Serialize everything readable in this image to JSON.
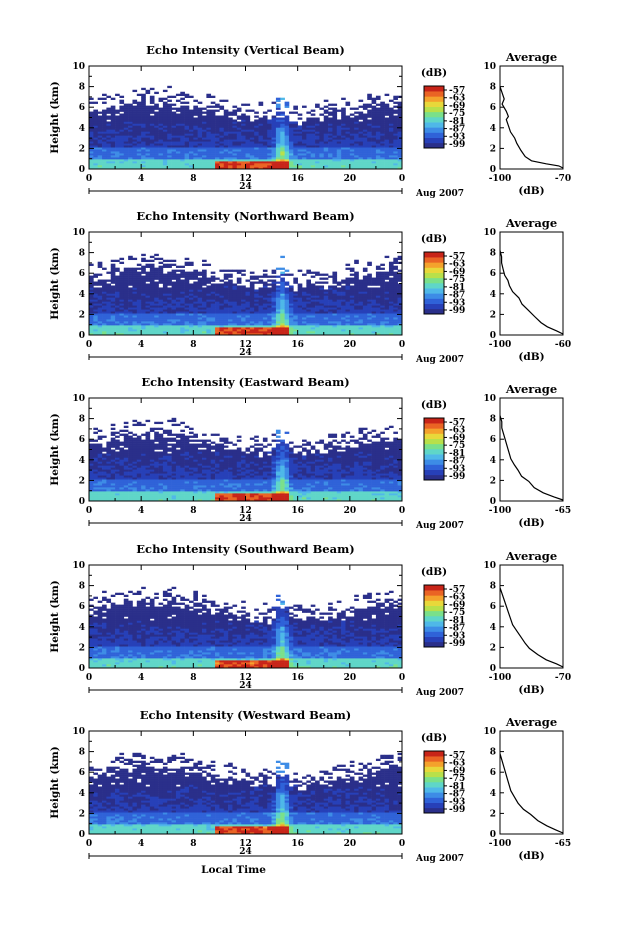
{
  "chart_data": [
    {
      "type": "heatmap",
      "title": "Echo Intensity (Vertical Beam)",
      "ylabel": "Height (km)",
      "ylim": [
        0,
        10
      ],
      "yticks": [
        "0",
        "2",
        "4",
        "6",
        "8",
        "10"
      ],
      "xlim": [
        0,
        24
      ],
      "xticks": [
        "0",
        "4",
        "8",
        "12",
        "16",
        "20",
        "0"
      ],
      "date_day": "24",
      "date_month": "Aug 2007",
      "colorbar": {
        "unit": "(dB)",
        "ticks": [
          "-57",
          "-63",
          "-69",
          "-75",
          "-81",
          "-87",
          "-93",
          "-99"
        ]
      },
      "average": {
        "title": "Average",
        "xlabel": "(dB)",
        "xticks": [
          "-100",
          "-70"
        ],
        "xlim": [
          -100,
          -70
        ],
        "profile": [
          [
            -70,
            0.1
          ],
          [
            -72,
            0.3
          ],
          [
            -78,
            0.5
          ],
          [
            -85,
            0.8
          ],
          [
            -88,
            1.2
          ],
          [
            -90,
            1.8
          ],
          [
            -92,
            2.5
          ],
          [
            -93,
            3.0
          ],
          [
            -95,
            3.6
          ],
          [
            -96,
            4.2
          ],
          [
            -97,
            4.8
          ],
          [
            -96,
            5.1
          ],
          [
            -97,
            5.6
          ],
          [
            -99,
            6.3
          ],
          [
            -98,
            6.8
          ],
          [
            -99,
            7.4
          ],
          [
            -100,
            8.0
          ]
        ]
      },
      "time_label": ""
    },
    {
      "type": "heatmap",
      "title": "Echo Intensity (Northward Beam)",
      "ylabel": "Height (km)",
      "ylim": [
        0,
        10
      ],
      "yticks": [
        "0",
        "2",
        "4",
        "6",
        "8",
        "10"
      ],
      "xlim": [
        0,
        24
      ],
      "xticks": [
        "0",
        "4",
        "8",
        "12",
        "16",
        "20",
        "0"
      ],
      "date_day": "24",
      "date_month": "Aug 2007",
      "colorbar": {
        "unit": "(dB)",
        "ticks": [
          "-57",
          "-63",
          "-69",
          "-75",
          "-81",
          "-87",
          "-93",
          "-99"
        ]
      },
      "average": {
        "title": "Average",
        "xlabel": "(dB)",
        "xticks": [
          "-100",
          "-60"
        ],
        "xlim": [
          -100,
          -60
        ],
        "profile": [
          [
            -60,
            0.1
          ],
          [
            -64,
            0.4
          ],
          [
            -70,
            0.8
          ],
          [
            -74,
            1.2
          ],
          [
            -78,
            1.8
          ],
          [
            -82,
            2.4
          ],
          [
            -86,
            3.0
          ],
          [
            -88,
            3.6
          ],
          [
            -92,
            4.2
          ],
          [
            -94,
            4.8
          ],
          [
            -95,
            5.3
          ],
          [
            -97,
            5.8
          ],
          [
            -98,
            6.4
          ],
          [
            -99,
            7.0
          ],
          [
            -99,
            7.6
          ],
          [
            -100,
            8.2
          ]
        ]
      },
      "time_label": ""
    },
    {
      "type": "heatmap",
      "title": "Echo Intensity (Eastward Beam)",
      "ylabel": "Height (km)",
      "ylim": [
        0,
        10
      ],
      "yticks": [
        "0",
        "2",
        "4",
        "6",
        "8",
        "10"
      ],
      "xlim": [
        0,
        24
      ],
      "xticks": [
        "0",
        "4",
        "8",
        "12",
        "16",
        "20",
        "0"
      ],
      "date_day": "24",
      "date_month": "Aug 2007",
      "colorbar": {
        "unit": "(dB)",
        "ticks": [
          "-57",
          "-63",
          "-69",
          "-75",
          "-81",
          "-87",
          "-93",
          "-99"
        ]
      },
      "average": {
        "title": "Average",
        "xlabel": "(dB)",
        "xticks": [
          "-100",
          "-65"
        ],
        "xlim": [
          -100,
          -65
        ],
        "profile": [
          [
            -65,
            0.1
          ],
          [
            -70,
            0.4
          ],
          [
            -76,
            0.8
          ],
          [
            -81,
            1.3
          ],
          [
            -84,
            1.9
          ],
          [
            -88,
            2.4
          ],
          [
            -90,
            3.0
          ],
          [
            -92,
            3.5
          ],
          [
            -94,
            4.1
          ],
          [
            -95,
            4.7
          ],
          [
            -96,
            5.3
          ],
          [
            -97,
            5.9
          ],
          [
            -98,
            6.5
          ],
          [
            -99,
            7.1
          ],
          [
            -99,
            7.7
          ],
          [
            -100,
            8.3
          ]
        ]
      },
      "time_label": ""
    },
    {
      "type": "heatmap",
      "title": "Echo Intensity (Southward Beam)",
      "ylabel": "Height (km)",
      "ylim": [
        0,
        10
      ],
      "yticks": [
        "0",
        "2",
        "4",
        "6",
        "8",
        "10"
      ],
      "xlim": [
        0,
        24
      ],
      "xticks": [
        "0",
        "4",
        "8",
        "12",
        "16",
        "20",
        "0"
      ],
      "date_day": "24",
      "date_month": "Aug 2007",
      "colorbar": {
        "unit": "(dB)",
        "ticks": [
          "-57",
          "-63",
          "-69",
          "-75",
          "-81",
          "-87",
          "-93",
          "-99"
        ]
      },
      "average": {
        "title": "Average",
        "xlabel": "(dB)",
        "xticks": [
          "-100",
          "-70"
        ],
        "xlim": [
          -100,
          -70
        ],
        "profile": [
          [
            -70,
            0.1
          ],
          [
            -73,
            0.4
          ],
          [
            -78,
            0.8
          ],
          [
            -82,
            1.3
          ],
          [
            -86,
            1.9
          ],
          [
            -88,
            2.4
          ],
          [
            -90,
            3.0
          ],
          [
            -92,
            3.6
          ],
          [
            -94,
            4.2
          ],
          [
            -95,
            4.8
          ],
          [
            -96,
            5.4
          ],
          [
            -97,
            6.0
          ],
          [
            -98,
            6.6
          ],
          [
            -99,
            7.2
          ],
          [
            -100,
            7.8
          ]
        ]
      },
      "time_label": ""
    },
    {
      "type": "heatmap",
      "title": "Echo Intensity (Westward Beam)",
      "ylabel": "Height (km)",
      "ylim": [
        0,
        10
      ],
      "yticks": [
        "0",
        "2",
        "4",
        "6",
        "8",
        "10"
      ],
      "xlim": [
        0,
        24
      ],
      "xticks": [
        "0",
        "4",
        "8",
        "12",
        "16",
        "20",
        "0"
      ],
      "date_day": "24",
      "date_month": "Aug 2007",
      "colorbar": {
        "unit": "(dB)",
        "ticks": [
          "-57",
          "-63",
          "-69",
          "-75",
          "-81",
          "-87",
          "-93",
          "-99"
        ]
      },
      "average": {
        "title": "Average",
        "xlabel": "(dB)",
        "xticks": [
          "-100",
          "-65"
        ],
        "xlim": [
          -100,
          -65
        ],
        "profile": [
          [
            -65,
            0.1
          ],
          [
            -69,
            0.4
          ],
          [
            -74,
            0.8
          ],
          [
            -79,
            1.3
          ],
          [
            -83,
            1.9
          ],
          [
            -87,
            2.4
          ],
          [
            -90,
            3.0
          ],
          [
            -92,
            3.6
          ],
          [
            -94,
            4.2
          ],
          [
            -95,
            4.8
          ],
          [
            -96,
            5.4
          ],
          [
            -97,
            6.0
          ],
          [
            -98,
            6.6
          ],
          [
            -99,
            7.2
          ],
          [
            -100,
            7.8
          ]
        ]
      },
      "time_label": "Local Time"
    }
  ],
  "colors": {
    "colormap": [
      "#2a2f8a",
      "#2740b8",
      "#2f62d8",
      "#3d8ce6",
      "#4fb8e8",
      "#5fd6c8",
      "#7ae08a",
      "#b8e04a",
      "#e8d83a",
      "#f4a22c",
      "#ea6424",
      "#c82418"
    ],
    "background": "#ffffff",
    "axis": "#000000"
  }
}
